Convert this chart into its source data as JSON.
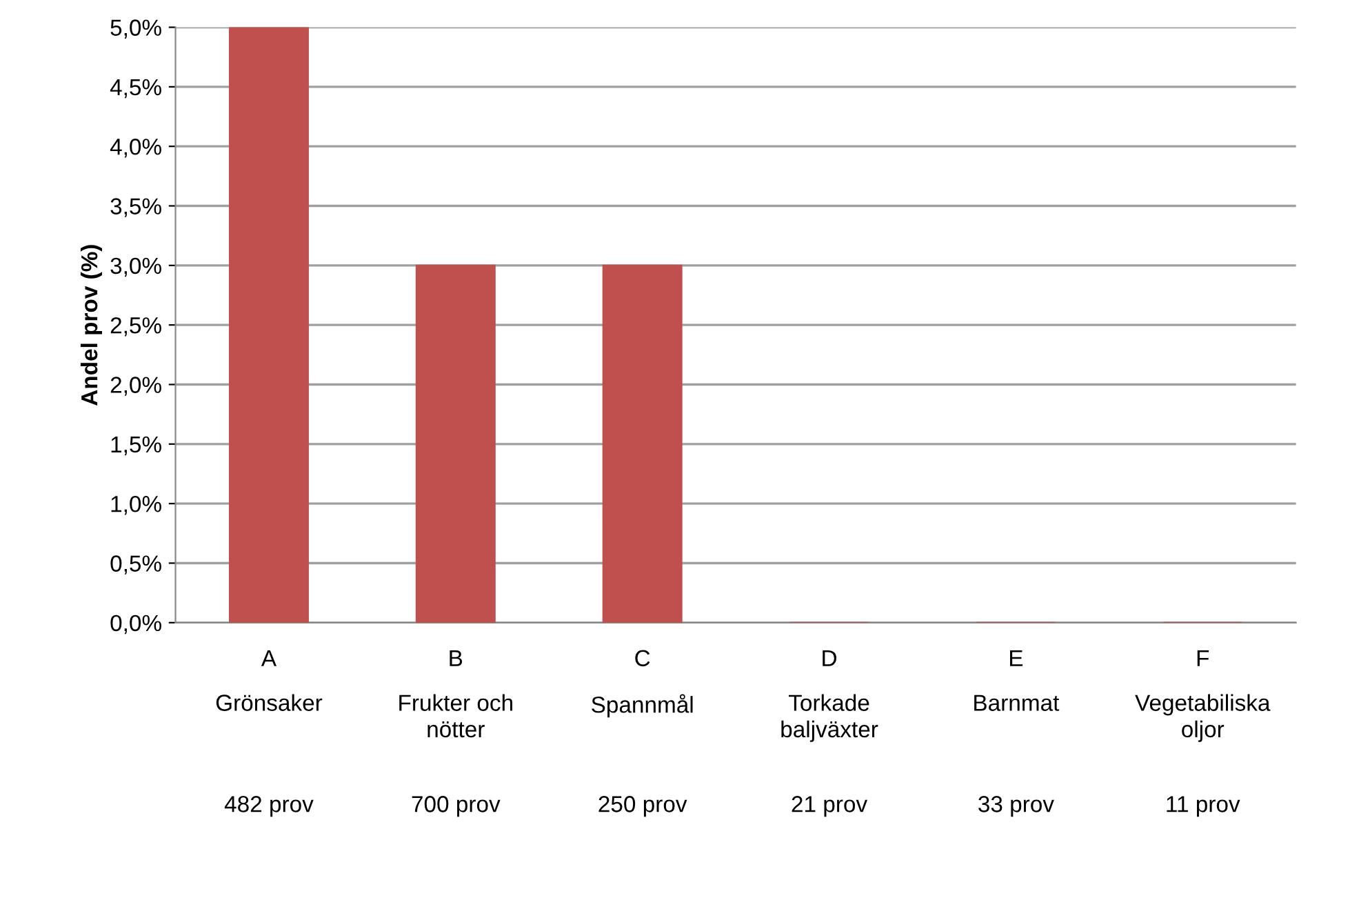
{
  "chart_data": {
    "type": "bar",
    "categories": [
      "A\n\nGrönsaker\n\n482 prov",
      "B\n\nFrukter och\nnötter\n\n700 prov",
      "C\n\nSpannmål\n\n250 prov",
      "D\n\nTorkade\nbaljväxter\n\n21 prov",
      "E\n\nBarnmat\n\n33 prov",
      "F\n\nVegetabiliska\noljor\n\n11 prov"
    ],
    "values": [
      5.0,
      3.0,
      3.0,
      0,
      0,
      0
    ],
    "color": "#c0504d",
    "ylabel": "Andel prov (%)",
    "ylim": [
      0,
      5
    ],
    "yticks": [
      {
        "value": 0,
        "label": "0,0%"
      },
      {
        "value": 0.5,
        "label": "0,5%"
      },
      {
        "value": 1,
        "label": "1,0%"
      },
      {
        "value": 1.5,
        "label": "1,5%"
      },
      {
        "value": 2,
        "label": "2,0%"
      },
      {
        "value": 2.5,
        "label": "2,5%"
      },
      {
        "value": 3,
        "label": "3,0%"
      },
      {
        "value": 3.5,
        "label": "3,5%"
      },
      {
        "value": 4,
        "label": "4,0%"
      },
      {
        "value": 4.5,
        "label": "4,5%"
      },
      {
        "value": 5,
        "label": "5,0%"
      }
    ],
    "grid": "y"
  }
}
